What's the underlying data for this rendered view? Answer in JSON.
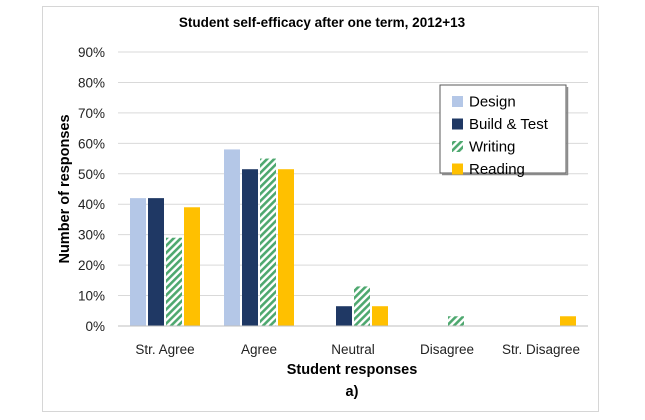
{
  "chart_data": {
    "type": "bar",
    "title": "Student self-efficacy after one term, 2012+13",
    "xlabel": "Student responses",
    "ylabel": "Number of responses",
    "caption": "a)",
    "categories": [
      "Str. Agree",
      "Agree",
      "Neutral",
      "Disagree",
      "Str. Disagree"
    ],
    "yticks": [
      "0%",
      "10%",
      "20%",
      "30%",
      "40%",
      "50%",
      "60%",
      "70%",
      "80%",
      "90%"
    ],
    "ylim": [
      0,
      90
    ],
    "grid": true,
    "legend_position": "top-right",
    "series": [
      {
        "name": "Design",
        "values": [
          42,
          58,
          0,
          0,
          0
        ],
        "color": "#b4c7e7",
        "pattern": "solid"
      },
      {
        "name": "Build & Test",
        "values": [
          42,
          51.5,
          6.5,
          0,
          0
        ],
        "color": "#1f3864",
        "pattern": "solid"
      },
      {
        "name": "Writing",
        "values": [
          29,
          55,
          13,
          3.2,
          0
        ],
        "color": "#4ea86f",
        "pattern": "diagonal-hatch"
      },
      {
        "name": "Reading",
        "values": [
          39,
          51.5,
          6.5,
          0,
          3.2
        ],
        "color": "#ffc000",
        "pattern": "solid"
      }
    ]
  }
}
